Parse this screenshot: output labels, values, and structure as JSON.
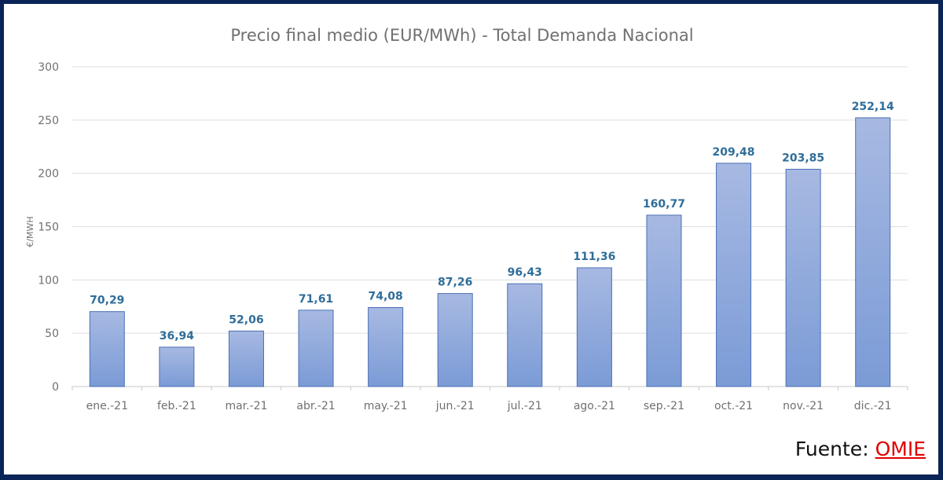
{
  "chart_data": {
    "type": "bar",
    "title": "Precio final medio (EUR/MWh) - Total Demanda Nacional",
    "xlabel": "",
    "ylabel": "€/MWH",
    "ylim": [
      0,
      300
    ],
    "yticks": [
      0,
      50,
      100,
      150,
      200,
      250,
      300
    ],
    "grid": true,
    "categories": [
      "ene.-21",
      "feb.-21",
      "mar.-21",
      "abr.-21",
      "may.-21",
      "jun.-21",
      "jul.-21",
      "ago.-21",
      "sep.-21",
      "oct.-21",
      "nov.-21",
      "dic.-21"
    ],
    "values": [
      70.29,
      36.94,
      52.06,
      71.61,
      74.08,
      87.26,
      96.43,
      111.36,
      160.77,
      209.48,
      203.85,
      252.14
    ],
    "data_labels": [
      "70,29",
      "36,94",
      "52,06",
      "71,61",
      "74,08",
      "87,26",
      "96,43",
      "111,36",
      "160,77",
      "209,48",
      "203,85",
      "252,14"
    ],
    "colors": {
      "bar_top": "#a7b9e2",
      "bar_bottom": "#7b9bd6",
      "bar_edge": "#4a6fb3",
      "label": "#2f6d9a"
    }
  },
  "source": {
    "label": "Fuente:",
    "link": "OMIE"
  }
}
